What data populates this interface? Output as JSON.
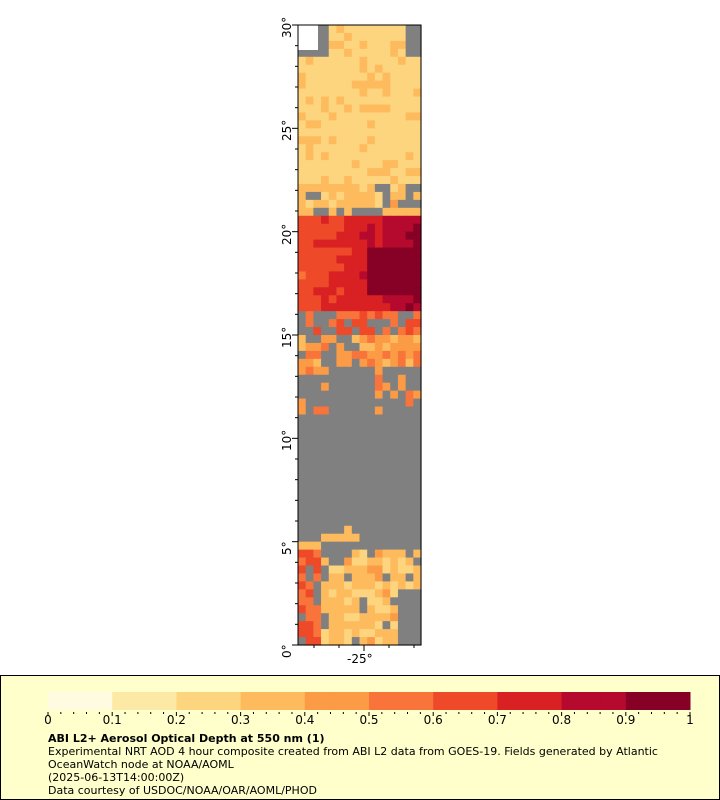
{
  "map": {
    "latitude_labels": [
      "0°",
      "5°",
      "10°",
      "15°",
      "20°",
      "25°",
      "30°"
    ],
    "latitude_values": [
      0,
      5,
      10,
      15,
      20,
      25,
      30
    ],
    "longitude_labels": [
      "-25°"
    ],
    "lat_range": [
      0,
      30
    ],
    "colors": {
      "nodata": "#808080",
      "scale": [
        "#fffbe0",
        "#fde9a6",
        "#fdd57e",
        "#fdbb5e",
        "#fc9b45",
        "#f8743a",
        "#ee4a2a",
        "#d92022",
        "#b5092e",
        "#870026"
      ]
    }
  },
  "colorbar": {
    "labels": [
      "0",
      "0.1",
      "0.2",
      "0.3",
      "0.4",
      "0.5",
      "0.6",
      "0.7",
      "0.8",
      "0.9",
      "1"
    ],
    "range": [
      0,
      1
    ]
  },
  "legend": {
    "title": "ABI L2+ Aerosol Optical Depth at 550 nm (1)",
    "line1": "Experimental NRT AOD 4 hour composite created from ABI L2 data from GOES-19. Fields generated by Atlantic OceanWatch node at NOAA/AOML",
    "line2": "(2025-06-13T14:00:00Z)",
    "line3": "Data courtesy of USDOC/NOAA/OAR/AOML/PHOD"
  }
}
